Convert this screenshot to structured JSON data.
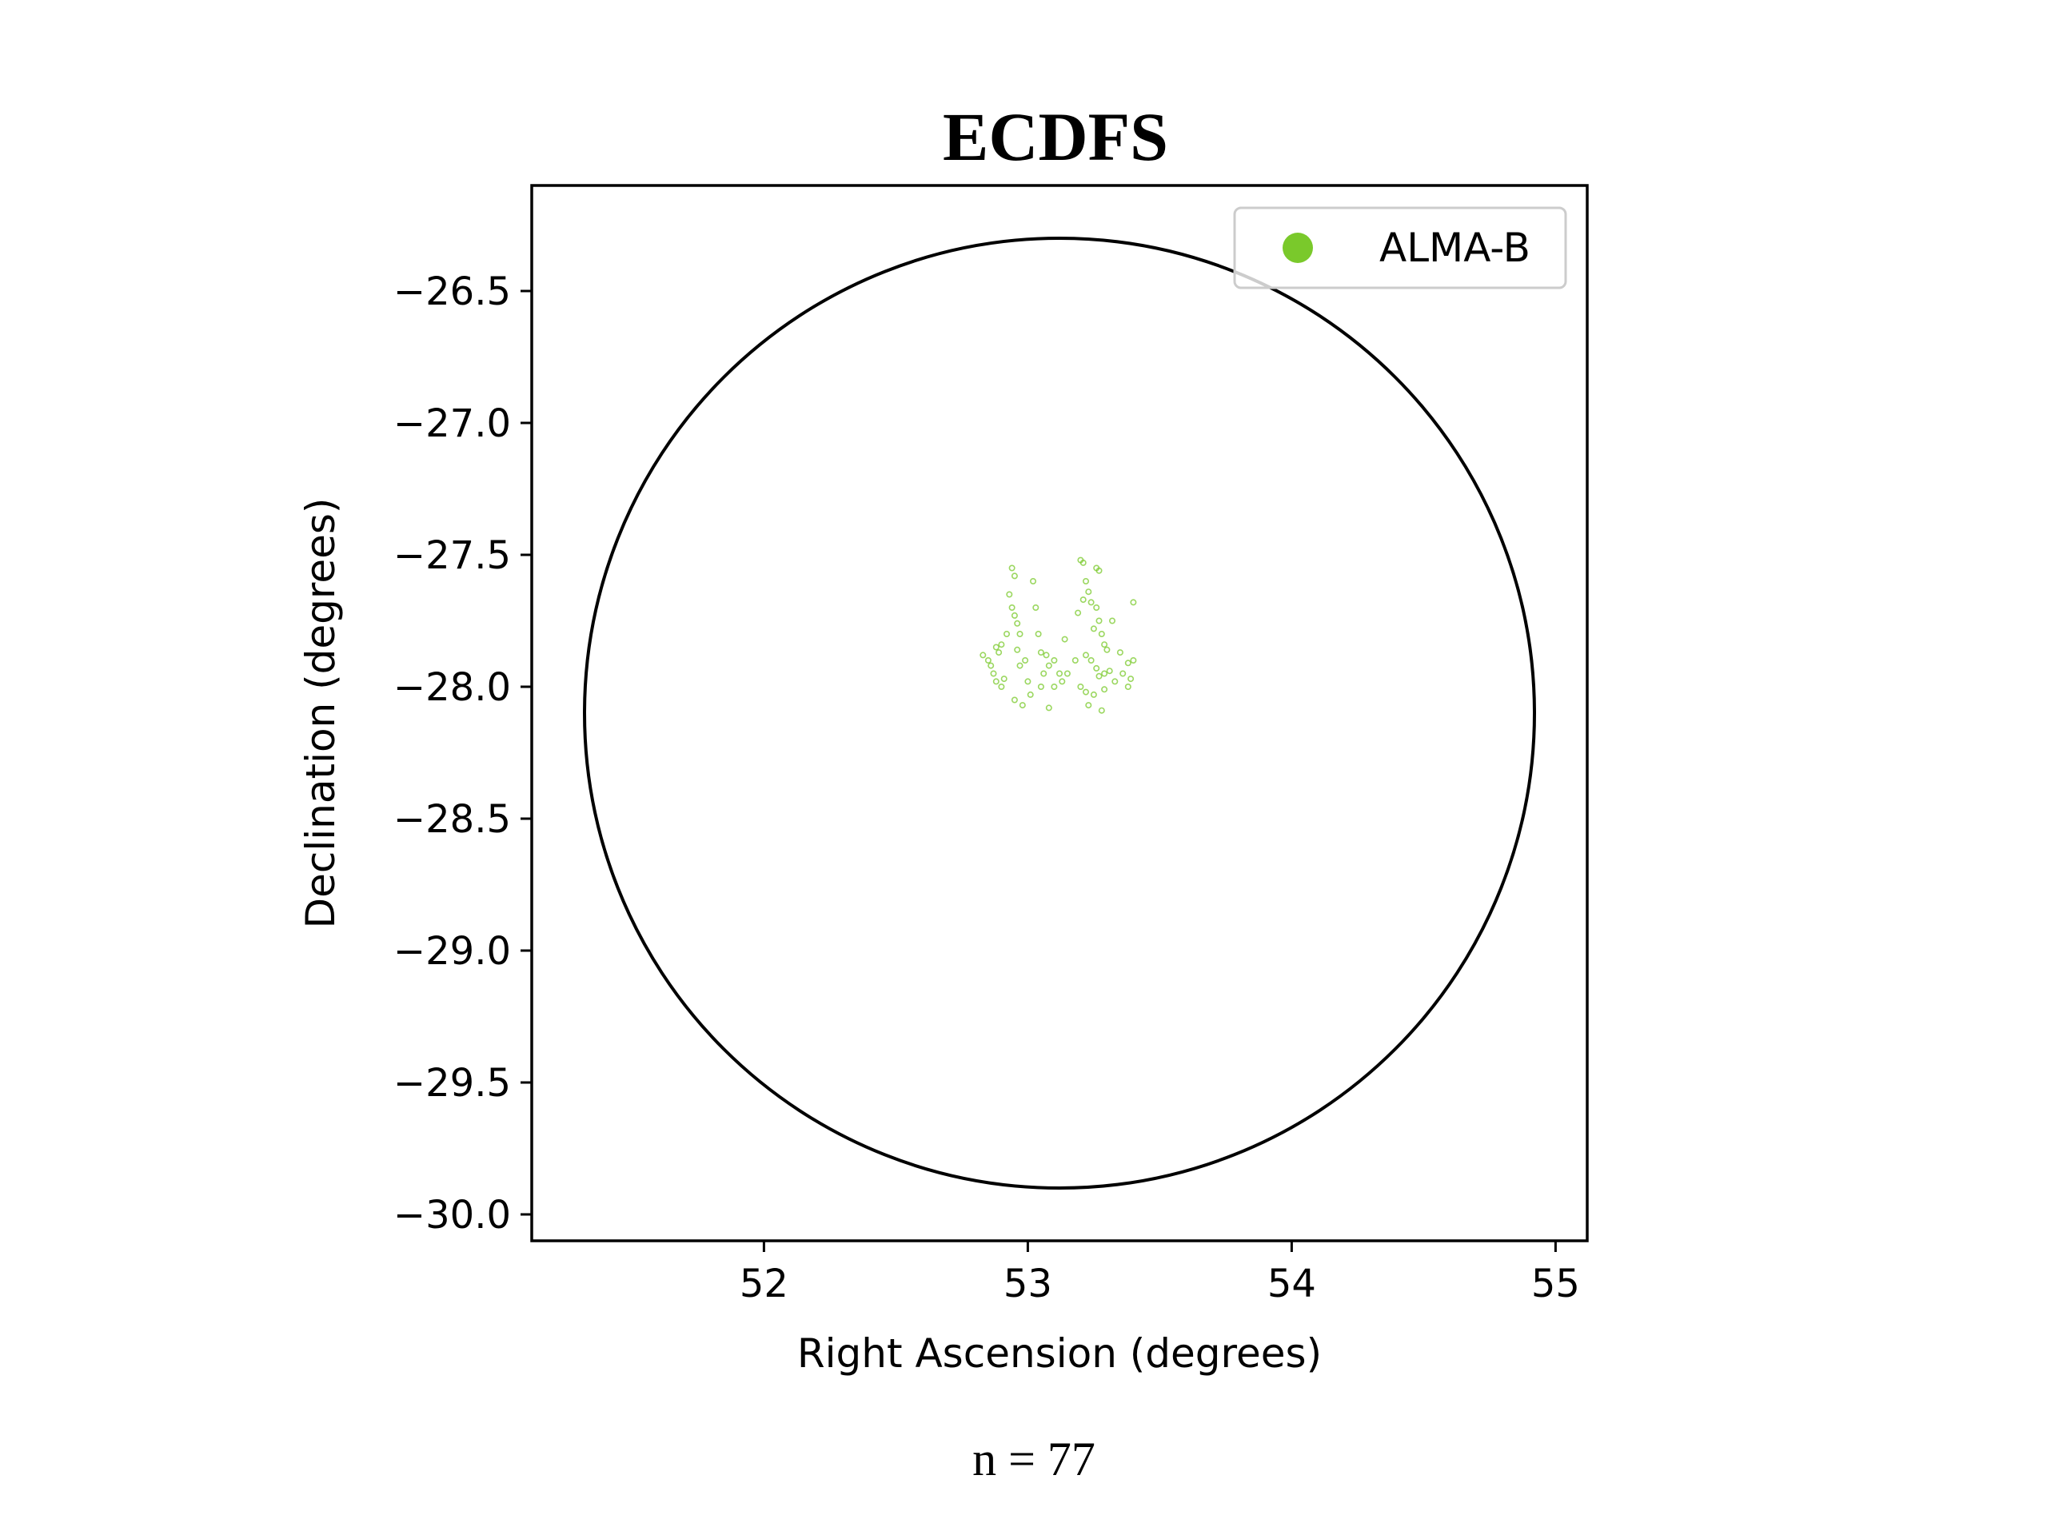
{
  "chart_data": {
    "type": "scatter",
    "title": "ECDFS",
    "xlabel": "Right Ascension (degrees)",
    "ylabel": "Declination (degrees)",
    "xlim": [
      51.12,
      55.12
    ],
    "ylim": [
      -30.1,
      -26.1
    ],
    "xticks": [
      52,
      53,
      54,
      55
    ],
    "yticks": [
      -26.5,
      -27.0,
      -27.5,
      -28.0,
      -28.5,
      -29.0,
      -29.5,
      -30.0
    ],
    "xtick_labels": [
      "52",
      "53",
      "54",
      "55"
    ],
    "ytick_labels": [
      "−26.5",
      "−27.0",
      "−27.5",
      "−28.0",
      "−28.5",
      "−29.0",
      "−29.5",
      "−30.0"
    ],
    "grid": false,
    "legend_position": "top-right",
    "footnote": "n = 77",
    "circle": {
      "center_ra": 53.12,
      "center_dec": -28.1,
      "radius_deg": 1.8,
      "color": "#000000"
    },
    "series": [
      {
        "name": "ALMA-B",
        "color": "#7ac92b",
        "points": [
          [
            52.94,
            -27.55
          ],
          [
            52.95,
            -27.58
          ],
          [
            52.93,
            -27.65
          ],
          [
            52.94,
            -27.7
          ],
          [
            52.95,
            -27.73
          ],
          [
            52.96,
            -27.76
          ],
          [
            52.97,
            -27.8
          ],
          [
            52.92,
            -27.8
          ],
          [
            52.9,
            -27.84
          ],
          [
            52.88,
            -27.85
          ],
          [
            52.89,
            -27.87
          ],
          [
            52.83,
            -27.88
          ],
          [
            52.85,
            -27.9
          ],
          [
            52.86,
            -27.92
          ],
          [
            52.87,
            -27.95
          ],
          [
            52.88,
            -27.98
          ],
          [
            52.9,
            -28.0
          ],
          [
            52.95,
            -28.05
          ],
          [
            52.98,
            -28.07
          ],
          [
            53.0,
            -27.98
          ],
          [
            52.99,
            -27.9
          ],
          [
            52.96,
            -27.86
          ],
          [
            52.97,
            -27.92
          ],
          [
            53.02,
            -27.6
          ],
          [
            53.03,
            -27.7
          ],
          [
            53.04,
            -27.8
          ],
          [
            53.05,
            -27.87
          ],
          [
            53.07,
            -27.88
          ],
          [
            53.08,
            -27.92
          ],
          [
            53.1,
            -27.9
          ],
          [
            53.06,
            -27.95
          ],
          [
            53.05,
            -28.0
          ],
          [
            53.08,
            -28.08
          ],
          [
            53.1,
            -28.0
          ],
          [
            53.12,
            -27.95
          ],
          [
            53.13,
            -27.98
          ],
          [
            53.2,
            -27.52
          ],
          [
            53.21,
            -27.53
          ],
          [
            53.22,
            -27.6
          ],
          [
            53.23,
            -27.64
          ],
          [
            53.24,
            -27.68
          ],
          [
            53.26,
            -27.55
          ],
          [
            53.27,
            -27.56
          ],
          [
            53.26,
            -27.7
          ],
          [
            53.27,
            -27.75
          ],
          [
            53.25,
            -27.78
          ],
          [
            53.28,
            -27.8
          ],
          [
            53.29,
            -27.84
          ],
          [
            53.3,
            -27.86
          ],
          [
            53.22,
            -27.88
          ],
          [
            53.24,
            -27.9
          ],
          [
            53.26,
            -27.93
          ],
          [
            53.27,
            -27.96
          ],
          [
            53.29,
            -27.95
          ],
          [
            53.31,
            -27.94
          ],
          [
            53.36,
            -27.95
          ],
          [
            53.38,
            -27.91
          ],
          [
            53.4,
            -27.9
          ],
          [
            53.39,
            -27.97
          ],
          [
            53.38,
            -28.0
          ],
          [
            53.4,
            -27.68
          ],
          [
            53.32,
            -27.75
          ],
          [
            53.2,
            -28.0
          ],
          [
            53.22,
            -28.02
          ],
          [
            53.23,
            -28.07
          ],
          [
            53.25,
            -28.03
          ],
          [
            53.29,
            -28.01
          ],
          [
            53.28,
            -28.09
          ],
          [
            53.15,
            -27.95
          ],
          [
            53.18,
            -27.9
          ],
          [
            53.35,
            -27.87
          ],
          [
            52.91,
            -27.97
          ],
          [
            53.01,
            -28.03
          ],
          [
            53.19,
            -27.72
          ],
          [
            53.33,
            -27.98
          ],
          [
            53.14,
            -27.82
          ],
          [
            53.21,
            -27.67
          ]
        ]
      }
    ]
  }
}
